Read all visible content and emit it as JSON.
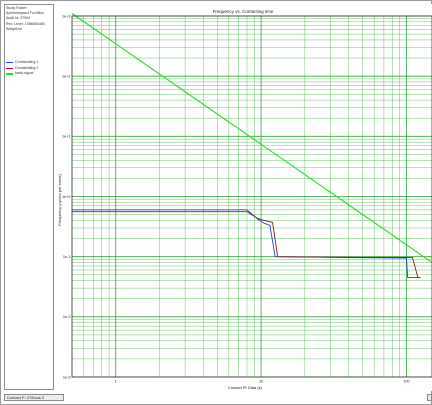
{
  "side_panel": {
    "info_lines": [
      "Study Folder:",
      "Acmimimpand Fox3Box",
      "Audit Id: 37994",
      "Rev. Level: 1086684480",
      "Weight:ne"
    ]
  },
  "status": {
    "text": "Contact P: 278/cus 2"
  },
  "colors": {
    "grid": "#2aa12a",
    "axes": "#333333",
    "series_1": "#2b3fd4",
    "series_2": "#7a2020",
    "series_3": "#22dd22",
    "background": "#ffffff"
  },
  "chart_data": {
    "type": "line",
    "title": "Frequency vs. Contacting time",
    "xlabel": "Contact Pt Data (s)",
    "ylabel": "Frequency (cycles per event)",
    "x_scale": "log",
    "y_scale": "log",
    "xlim": [
      0.5,
      150
    ],
    "ylim": [
      0.001,
      1000
    ],
    "x_ticks": [
      1,
      10,
      100
    ],
    "x_tick_labels": [
      "1",
      "10",
      "100"
    ],
    "y_ticks": [
      0.001,
      0.01,
      0.1,
      1,
      10,
      100,
      1000
    ],
    "y_tick_labels": [
      "1e-3",
      "1e-2",
      "1e-1",
      "1e+0",
      "1e+1",
      "1e+2",
      "1e+3"
    ],
    "grid": true,
    "legend_placement": "left-panel",
    "series": [
      {
        "name": "Contabutting 1",
        "color": "#2b3fd4",
        "x": [
          0.5,
          8,
          9.5,
          10.5,
          11.5,
          12.5,
          50,
          100,
          102,
          110,
          125
        ],
        "y": [
          0.6,
          0.6,
          0.42,
          0.36,
          0.33,
          0.1,
          0.096,
          0.095,
          0.045,
          0.045,
          0.045
        ]
      },
      {
        "name": "Contabutting 2",
        "color": "#7a2020",
        "x": [
          0.5,
          8,
          9.5,
          10.5,
          12,
          13,
          50,
          110,
          120,
          125
        ],
        "y": [
          0.56,
          0.56,
          0.43,
          0.4,
          0.37,
          0.1,
          0.097,
          0.097,
          0.045,
          0.045
        ]
      },
      {
        "name": "bank-signal",
        "color": "#22dd22",
        "x": [
          0.5,
          150
        ],
        "y": [
          1100,
          0.08
        ]
      }
    ]
  }
}
